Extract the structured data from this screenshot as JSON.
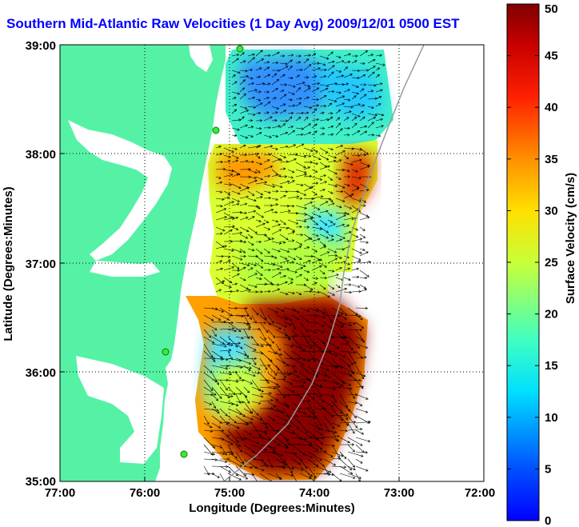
{
  "title": "Southern Mid-Atlantic Raw Velocities (1 Day Avg) 2009/12/01 0500 EST",
  "map": {
    "xlabel": "Longitude (Degrees:Minutes)",
    "ylabel": "Latitude (Degrees:Minutes)",
    "x_ticks": [
      "77:00",
      "76:00",
      "75:00",
      "74:00",
      "73:00",
      "72:00"
    ],
    "y_ticks": [
      "39:00",
      "38:00",
      "37:00",
      "36:00",
      "35:00"
    ],
    "land_color": "#55f2a6",
    "grid": "dotted"
  },
  "colorbar": {
    "label": "Surface Velocity (cm/s)",
    "ticks": [
      "50",
      "45",
      "40",
      "35",
      "30",
      "25",
      "20",
      "15",
      "10",
      "5",
      "0"
    ],
    "min": 0,
    "max": 50,
    "colormap": "jet"
  }
}
